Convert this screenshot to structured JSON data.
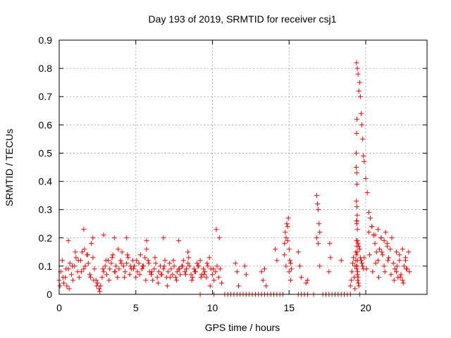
{
  "chart_data": {
    "type": "scatter",
    "title": "Day 193 of 2019, SRMTID for receiver csj1",
    "xlabel": "GPS time / hours",
    "ylabel": "SRMTID / TECUs",
    "xlim": [
      0,
      24
    ],
    "ylim": [
      0,
      0.9
    ],
    "xticks": [
      0,
      5,
      10,
      15,
      20
    ],
    "yticks": [
      0,
      0.1,
      0.2,
      0.3,
      0.4,
      0.5,
      0.6,
      0.7,
      0.8,
      0.9
    ],
    "grid": true,
    "marker": "plus",
    "color": "#ff0000",
    "series": [
      {
        "name": "csj1",
        "x": [
          0.0,
          0.1,
          0.2,
          0.3,
          0.4,
          0.5,
          0.6,
          0.7,
          0.8,
          0.9,
          1.0,
          1.1,
          1.2,
          1.3,
          1.4,
          1.5,
          1.6,
          1.7,
          1.8,
          1.9,
          2.0,
          2.1,
          2.2,
          2.3,
          2.4,
          2.5,
          2.6,
          2.7,
          2.8,
          2.9,
          3.0,
          3.1,
          3.2,
          3.3,
          3.4,
          3.5,
          3.6,
          3.7,
          3.8,
          3.9,
          4.0,
          4.1,
          4.2,
          4.3,
          4.4,
          4.5,
          4.6,
          4.7,
          4.8,
          4.9,
          5.0,
          5.1,
          5.2,
          5.3,
          5.4,
          5.5,
          5.6,
          5.7,
          5.8,
          5.9,
          6.0,
          6.1,
          6.2,
          6.3,
          6.4,
          6.5,
          6.6,
          6.7,
          6.8,
          6.9,
          7.0,
          7.1,
          7.2,
          7.3,
          7.4,
          7.5,
          7.6,
          7.7,
          7.8,
          7.9,
          8.0,
          8.1,
          8.2,
          8.3,
          8.4,
          8.5,
          8.6,
          8.7,
          8.8,
          8.9,
          9.0,
          9.1,
          9.2,
          9.3,
          9.4,
          9.5,
          9.6,
          9.7,
          9.8,
          9.9,
          10.0,
          10.1,
          10.2,
          10.3,
          10.4,
          10.5,
          10.6,
          0.05,
          0.25,
          0.45,
          0.65,
          0.85,
          1.05,
          1.25,
          1.45,
          1.65,
          1.85,
          2.05,
          2.25,
          2.45,
          2.65,
          2.85,
          3.05,
          3.25,
          3.45,
          3.65,
          3.85,
          4.05,
          4.25,
          4.45,
          4.65,
          4.85,
          5.05,
          5.25,
          5.45,
          5.65,
          5.85,
          6.05,
          6.25,
          6.45,
          6.65,
          6.85,
          7.05,
          7.25,
          7.45,
          7.65,
          7.85,
          8.05,
          8.25,
          8.45,
          8.65,
          8.85,
          9.05,
          9.25,
          9.45,
          9.65,
          9.85,
          10.05,
          10.25,
          10.45,
          0.6,
          1.6,
          2.2,
          2.9,
          3.6,
          4.4,
          5.7,
          6.8,
          7.8,
          8.4,
          9.2,
          10.1,
          10.8,
          11.0,
          11.2,
          11.4,
          11.6,
          11.8,
          12.0,
          12.2,
          12.4,
          12.6,
          12.8,
          13.0,
          13.2,
          13.4,
          13.6,
          13.8,
          14.0,
          14.2,
          14.4,
          14.6,
          15.6,
          15.8,
          16.0,
          16.2,
          16.6,
          17.2,
          17.4,
          17.6,
          17.8,
          18.0,
          18.2,
          18.4,
          18.6,
          18.8,
          19.0,
          19.6,
          11.5,
          11.6,
          11.7,
          12.1,
          12.2,
          13.2,
          13.3,
          13.4,
          13.5,
          14.1,
          14.2,
          14.7,
          14.75,
          14.8,
          14.85,
          14.9,
          14.95,
          15.0,
          15.05,
          15.1,
          15.15,
          14.7,
          14.8,
          14.9,
          15.0,
          15.1,
          15.6,
          15.7,
          15.8,
          16.1,
          16.2,
          16.8,
          16.85,
          16.9,
          16.95,
          17.0,
          16.8,
          16.9,
          17.0,
          17.6,
          17.7,
          17.65,
          18.4,
          19.0,
          19.05,
          19.1,
          19.15,
          19.2,
          19.25,
          19.3,
          19.35,
          19.3,
          19.35,
          19.4,
          19.45,
          19.5,
          19.55,
          19.6,
          19.65,
          19.7,
          19.75,
          19.8,
          19.85,
          19.9,
          20.0,
          20.1,
          20.2,
          20.3,
          20.4,
          20.5,
          20.6,
          20.7,
          20.8,
          20.9,
          21.0,
          21.1,
          21.2,
          21.3,
          21.4,
          21.5,
          21.6,
          21.7,
          21.8,
          21.9,
          22.0,
          22.1,
          22.2,
          22.3,
          22.4,
          22.5,
          22.6,
          22.7,
          22.8,
          19.4,
          19.45,
          19.5,
          19.55,
          19.6,
          19.65,
          19.7,
          19.75,
          19.8,
          19.85,
          19.9,
          20.05,
          20.25,
          20.45,
          20.65,
          20.85,
          21.05,
          21.25,
          21.45,
          21.65,
          21.85,
          22.05,
          22.25,
          22.45,
          22.65,
          22.85,
          20.2,
          20.4,
          20.6,
          20.8,
          21.0,
          21.2,
          21.4,
          22.0,
          22.2,
          22.4,
          22.6,
          19.38,
          19.4,
          19.42,
          19.38,
          19.41,
          19.43,
          19.39,
          19.42,
          19.44,
          19.4,
          19.43,
          19.41,
          19.45,
          19.39,
          19.42,
          19.44,
          19.4,
          19.46,
          19.43,
          19.41,
          19.47,
          19.45,
          19.5,
          19.48,
          19.52,
          19.55
        ],
        "y": [
          0.05,
          0.08,
          0.12,
          0.04,
          0.06,
          0.03,
          0.09,
          0.11,
          0.07,
          0.05,
          0.1,
          0.13,
          0.08,
          0.06,
          0.12,
          0.15,
          0.09,
          0.1,
          0.14,
          0.11,
          0.07,
          0.18,
          0.13,
          0.09,
          0.05,
          0.04,
          0.02,
          0.03,
          0.06,
          0.08,
          0.1,
          0.07,
          0.12,
          0.09,
          0.11,
          0.14,
          0.08,
          0.1,
          0.06,
          0.09,
          0.12,
          0.15,
          0.1,
          0.08,
          0.11,
          0.13,
          0.07,
          0.09,
          0.12,
          0.1,
          0.06,
          0.08,
          0.11,
          0.14,
          0.09,
          0.1,
          0.13,
          0.16,
          0.12,
          0.08,
          0.07,
          0.05,
          0.09,
          0.11,
          0.06,
          0.08,
          0.1,
          0.07,
          0.09,
          0.12,
          0.06,
          0.08,
          0.11,
          0.09,
          0.07,
          0.1,
          0.06,
          0.08,
          0.09,
          0.07,
          0.1,
          0.12,
          0.08,
          0.09,
          0.11,
          0.1,
          0.07,
          0.06,
          0.09,
          0.08,
          0.11,
          0.1,
          0.12,
          0.07,
          0.09,
          0.08,
          0.06,
          0.1,
          0.13,
          0.09,
          0.07,
          0.05,
          0.08,
          0.1,
          0.06,
          0.09,
          0.04,
          0.03,
          0.06,
          0.09,
          0.02,
          0.1,
          0.15,
          0.12,
          0.08,
          0.16,
          0.14,
          0.06,
          0.05,
          0.03,
          0.01,
          0.09,
          0.12,
          0.05,
          0.13,
          0.08,
          0.16,
          0.11,
          0.06,
          0.14,
          0.1,
          0.09,
          0.12,
          0.07,
          0.1,
          0.05,
          0.11,
          0.08,
          0.13,
          0.04,
          0.07,
          0.1,
          0.03,
          0.06,
          0.12,
          0.05,
          0.09,
          0.1,
          0.07,
          0.13,
          0.05,
          0.08,
          0.1,
          0.06,
          0.07,
          0.11,
          0.03,
          0.09,
          0.23,
          0.2,
          0.19,
          0.23,
          0.2,
          0.21,
          0.2,
          0.2,
          0.19,
          0.2,
          0.19,
          0.15,
          0.0,
          0.0,
          0.0,
          0.0,
          0.0,
          0.0,
          0.0,
          0.0,
          0.0,
          0.0,
          0.0,
          0.0,
          0.0,
          0.0,
          0.0,
          0.0,
          0.0,
          0.0,
          0.0,
          0.0,
          0.0,
          0.0,
          0.0,
          0.0,
          0.0,
          0.0,
          0.0,
          0.0,
          0.0,
          0.0,
          0.0,
          0.0,
          0.0,
          0.0,
          0.0,
          0.0,
          0.0,
          0.0,
          0.11,
          0.08,
          0.03,
          0.1,
          0.07,
          0.08,
          0.05,
          0.09,
          0.03,
          0.16,
          0.12,
          0.14,
          0.22,
          0.1,
          0.25,
          0.19,
          0.27,
          0.08,
          0.12,
          0.05,
          0.09,
          0.18,
          0.2,
          0.24,
          0.16,
          0.11,
          0.15,
          0.1,
          0.06,
          0.04,
          0.05,
          0.35,
          0.32,
          0.3,
          0.25,
          0.22,
          0.2,
          0.18,
          0.1,
          0.08,
          0.13,
          0.18,
          0.12,
          0.03,
          0.05,
          0.08,
          0.11,
          0.13,
          0.06,
          0.1,
          0.12,
          0.02,
          0.15,
          0.82,
          0.8,
          0.78,
          0.72,
          0.75,
          0.7,
          0.64,
          0.6,
          0.55,
          0.49,
          0.47,
          0.41,
          0.36,
          0.29,
          0.27,
          0.24,
          0.21,
          0.18,
          0.15,
          0.12,
          0.16,
          0.2,
          0.14,
          0.1,
          0.22,
          0.18,
          0.13,
          0.16,
          0.2,
          0.11,
          0.09,
          0.08,
          0.06,
          0.12,
          0.07,
          0.05,
          0.1,
          0.13,
          0.09,
          0.15,
          0.1,
          0.19,
          0.18,
          0.17,
          0.16,
          0.13,
          0.12,
          0.11,
          0.1,
          0.09,
          0.13,
          0.09,
          0.14,
          0.08,
          0.11,
          0.06,
          0.15,
          0.08,
          0.12,
          0.07,
          0.05,
          0.1,
          0.06,
          0.04,
          0.09,
          0.08,
          0.22,
          0.24,
          0.21,
          0.23,
          0.2,
          0.19,
          0.17,
          0.15,
          0.14,
          0.16,
          0.12,
          0.5,
          0.57,
          0.62,
          0.45,
          0.43,
          0.39,
          0.33,
          0.31,
          0.28,
          0.26,
          0.26,
          0.25,
          0.23,
          0.19,
          0.17,
          0.15,
          0.14,
          0.12,
          0.1,
          0.09,
          0.08,
          0.07,
          0.06,
          0.05,
          0.04,
          0.03
        ]
      }
    ]
  }
}
